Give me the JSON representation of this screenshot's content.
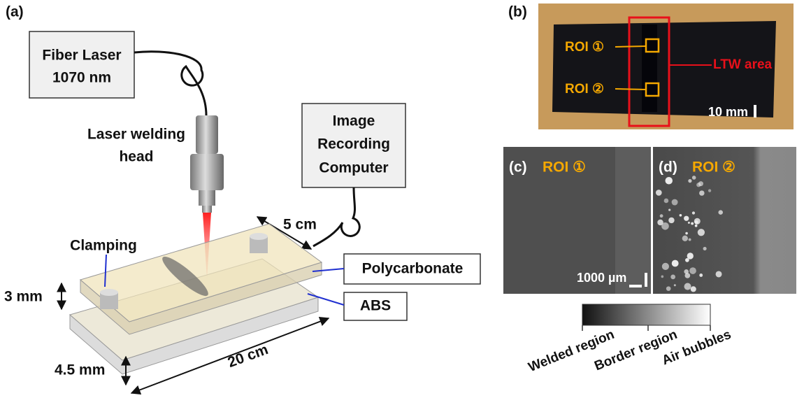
{
  "panel_a": {
    "label": "(a)",
    "fiber_laser": [
      "Fiber Laser",
      "1070 nm"
    ],
    "head_label": [
      "Laser welding",
      "head"
    ],
    "computer": [
      "Image",
      "Recording",
      "Computer"
    ],
    "distance": "5 cm",
    "clamping": "Clamping",
    "polycarbonate": "Polycarbonate",
    "abs": "ABS",
    "top_thickness": "3 mm",
    "bottom_thickness": "4.5 mm",
    "length": "20 cm"
  },
  "panel_b": {
    "label": "(b)",
    "roi_1": "ROI ①",
    "roi_2": "ROI ②",
    "area": "LTW area",
    "scale": "10 mm"
  },
  "panel_c": {
    "label": "(c)",
    "roi": "ROI ①",
    "scale": "1000 µm"
  },
  "panel_d": {
    "label": "(d)",
    "roi": "ROI ②"
  },
  "colorbar": {
    "labels": [
      "Welded region",
      "Border region",
      "Air bubbles"
    ]
  }
}
